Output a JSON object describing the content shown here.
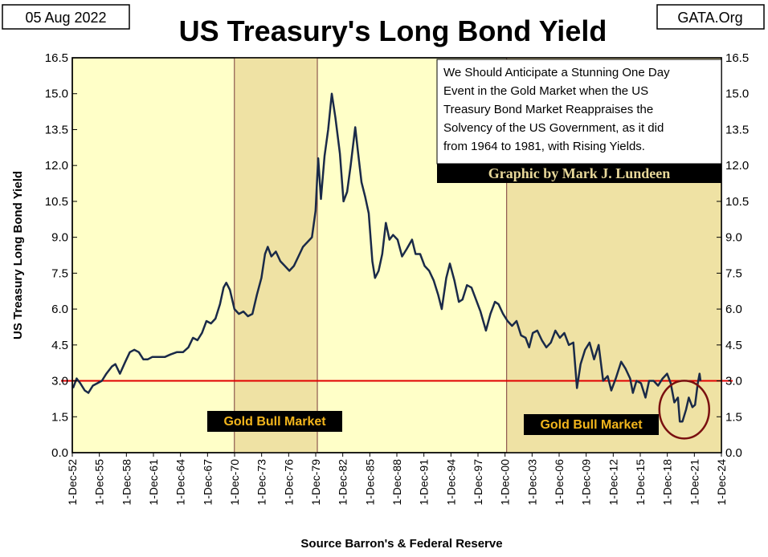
{
  "header": {
    "date": "05 Aug 2022",
    "title": "US Treasury's Long Bond Yield",
    "site": "GATA.Org"
  },
  "annotation": {
    "lines": [
      "We Should Anticipate a Stunning One Day",
      "Event in the Gold Market when the US",
      "Treasury Bond Market Reappraises the",
      "Solvency of the US Government, as it did",
      "from 1964 to 1981, with Rising Yields."
    ],
    "credit": "Graphic by Mark J. Lundeen"
  },
  "bull_labels": [
    "Gold Bull Market",
    "Gold Bull Market"
  ],
  "colors": {
    "plot_bg": "#ffffc8",
    "shaded_bg": "#efe2a4",
    "line": "#1a2a48",
    "reference_line": "#e00000",
    "circle": "#7a1010",
    "label_bg": "#000000",
    "label_text": "#f2b51c"
  },
  "chart_data": {
    "type": "line",
    "title": "US Treasury's Long Bond Yield",
    "ylabel": "US Treasury  Long Bond Yield",
    "xlabel": "Source Barron's & Federal Reserve",
    "x_range": [
      1952.92,
      2024.92
    ],
    "ylim": [
      0,
      16.5
    ],
    "y_ticks": [
      "0.0",
      "1.5",
      "3.0",
      "4.5",
      "6.0",
      "7.5",
      "9.0",
      "10.5",
      "12.0",
      "13.5",
      "15.0",
      "16.5"
    ],
    "x_ticks": [
      "1-Dec-52",
      "1-Dec-55",
      "1-Dec-58",
      "1-Dec-61",
      "1-Dec-64",
      "1-Dec-67",
      "1-Dec-70",
      "1-Dec-73",
      "1-Dec-76",
      "1-Dec-79",
      "1-Dec-82",
      "1-Dec-85",
      "1-Dec-88",
      "1-Dec-91",
      "1-Dec-94",
      "1-Dec-97",
      "1-Dec-00",
      "1-Dec-03",
      "1-Dec-06",
      "1-Dec-09",
      "1-Dec-12",
      "1-Dec-15",
      "1-Dec-18",
      "1-Dec-21",
      "1-Dec-24"
    ],
    "reference_line": 3.0,
    "shaded_periods": [
      [
        1970.9,
        1980.1
      ],
      [
        2001.1,
        2024.92
      ]
    ],
    "highlight_region": {
      "center": [
        2020.8,
        1.8
      ],
      "note": "circled 2020-2022 low"
    },
    "grid": false,
    "legend": "none",
    "series": [
      {
        "points": [
          [
            1953.0,
            2.7
          ],
          [
            1953.4,
            3.1
          ],
          [
            1953.8,
            2.9
          ],
          [
            1954.3,
            2.6
          ],
          [
            1954.7,
            2.5
          ],
          [
            1955.2,
            2.8
          ],
          [
            1955.7,
            2.9
          ],
          [
            1956.2,
            3.0
          ],
          [
            1956.7,
            3.3
          ],
          [
            1957.3,
            3.6
          ],
          [
            1957.7,
            3.7
          ],
          [
            1958.2,
            3.3
          ],
          [
            1958.8,
            3.8
          ],
          [
            1959.3,
            4.2
          ],
          [
            1959.8,
            4.3
          ],
          [
            1960.3,
            4.2
          ],
          [
            1960.8,
            3.9
          ],
          [
            1961.3,
            3.9
          ],
          [
            1961.8,
            4.0
          ],
          [
            1962.5,
            4.0
          ],
          [
            1963.2,
            4.0
          ],
          [
            1963.8,
            4.1
          ],
          [
            1964.5,
            4.2
          ],
          [
            1965.2,
            4.2
          ],
          [
            1965.8,
            4.4
          ],
          [
            1966.3,
            4.8
          ],
          [
            1966.8,
            4.7
          ],
          [
            1967.3,
            5.0
          ],
          [
            1967.8,
            5.5
          ],
          [
            1968.3,
            5.4
          ],
          [
            1968.8,
            5.6
          ],
          [
            1969.3,
            6.2
          ],
          [
            1969.7,
            6.9
          ],
          [
            1970.0,
            7.1
          ],
          [
            1970.4,
            6.8
          ],
          [
            1970.9,
            6.0
          ],
          [
            1971.4,
            5.8
          ],
          [
            1971.9,
            5.9
          ],
          [
            1972.4,
            5.7
          ],
          [
            1972.9,
            5.8
          ],
          [
            1973.4,
            6.6
          ],
          [
            1973.9,
            7.3
          ],
          [
            1974.3,
            8.3
          ],
          [
            1974.6,
            8.6
          ],
          [
            1975.0,
            8.2
          ],
          [
            1975.5,
            8.4
          ],
          [
            1976.0,
            8.0
          ],
          [
            1976.5,
            7.8
          ],
          [
            1977.0,
            7.6
          ],
          [
            1977.5,
            7.8
          ],
          [
            1978.0,
            8.2
          ],
          [
            1978.5,
            8.6
          ],
          [
            1979.0,
            8.8
          ],
          [
            1979.5,
            9.0
          ],
          [
            1979.9,
            10.1
          ],
          [
            1980.2,
            12.3
          ],
          [
            1980.5,
            10.6
          ],
          [
            1980.9,
            12.4
          ],
          [
            1981.3,
            13.5
          ],
          [
            1981.7,
            15.0
          ],
          [
            1982.1,
            14.0
          ],
          [
            1982.6,
            12.5
          ],
          [
            1983.0,
            10.5
          ],
          [
            1983.4,
            10.9
          ],
          [
            1983.8,
            12.0
          ],
          [
            1984.3,
            13.6
          ],
          [
            1984.6,
            12.6
          ],
          [
            1985.0,
            11.3
          ],
          [
            1985.4,
            10.7
          ],
          [
            1985.8,
            10.0
          ],
          [
            1986.2,
            8.0
          ],
          [
            1986.5,
            7.3
          ],
          [
            1986.9,
            7.6
          ],
          [
            1987.3,
            8.3
          ],
          [
            1987.7,
            9.6
          ],
          [
            1988.1,
            8.9
          ],
          [
            1988.5,
            9.1
          ],
          [
            1989.0,
            8.9
          ],
          [
            1989.5,
            8.2
          ],
          [
            1990.0,
            8.5
          ],
          [
            1990.6,
            8.9
          ],
          [
            1991.0,
            8.3
          ],
          [
            1991.5,
            8.3
          ],
          [
            1992.0,
            7.8
          ],
          [
            1992.5,
            7.6
          ],
          [
            1993.0,
            7.2
          ],
          [
            1993.5,
            6.6
          ],
          [
            1993.9,
            6.0
          ],
          [
            1994.4,
            7.3
          ],
          [
            1994.8,
            7.9
          ],
          [
            1995.3,
            7.2
          ],
          [
            1995.8,
            6.3
          ],
          [
            1996.2,
            6.4
          ],
          [
            1996.7,
            7.0
          ],
          [
            1997.2,
            6.9
          ],
          [
            1997.7,
            6.4
          ],
          [
            1998.2,
            5.9
          ],
          [
            1998.8,
            5.1
          ],
          [
            1999.3,
            5.8
          ],
          [
            1999.8,
            6.3
          ],
          [
            2000.2,
            6.2
          ],
          [
            2000.7,
            5.8
          ],
          [
            2001.2,
            5.5
          ],
          [
            2001.7,
            5.3
          ],
          [
            2002.2,
            5.5
          ],
          [
            2002.7,
            4.9
          ],
          [
            2003.2,
            4.8
          ],
          [
            2003.6,
            4.4
          ],
          [
            2004.0,
            5.0
          ],
          [
            2004.5,
            5.1
          ],
          [
            2005.0,
            4.7
          ],
          [
            2005.5,
            4.4
          ],
          [
            2006.0,
            4.6
          ],
          [
            2006.5,
            5.1
          ],
          [
            2007.0,
            4.8
          ],
          [
            2007.5,
            5.0
          ],
          [
            2008.0,
            4.5
          ],
          [
            2008.5,
            4.6
          ],
          [
            2008.9,
            2.7
          ],
          [
            2009.3,
            3.7
          ],
          [
            2009.8,
            4.3
          ],
          [
            2010.3,
            4.6
          ],
          [
            2010.8,
            3.9
          ],
          [
            2011.3,
            4.5
          ],
          [
            2011.8,
            3.0
          ],
          [
            2012.3,
            3.2
          ],
          [
            2012.7,
            2.6
          ],
          [
            2013.2,
            3.1
          ],
          [
            2013.8,
            3.8
          ],
          [
            2014.3,
            3.5
          ],
          [
            2014.8,
            3.1
          ],
          [
            2015.1,
            2.5
          ],
          [
            2015.5,
            3.0
          ],
          [
            2016.0,
            2.9
          ],
          [
            2016.5,
            2.3
          ],
          [
            2016.9,
            3.0
          ],
          [
            2017.4,
            3.0
          ],
          [
            2017.9,
            2.8
          ],
          [
            2018.4,
            3.1
          ],
          [
            2018.9,
            3.3
          ],
          [
            2019.3,
            2.9
          ],
          [
            2019.7,
            2.1
          ],
          [
            2020.1,
            2.3
          ],
          [
            2020.3,
            1.3
          ],
          [
            2020.6,
            1.3
          ],
          [
            2021.0,
            1.8
          ],
          [
            2021.3,
            2.3
          ],
          [
            2021.7,
            1.9
          ],
          [
            2022.0,
            2.0
          ],
          [
            2022.3,
            2.9
          ],
          [
            2022.5,
            3.3
          ],
          [
            2022.6,
            3.0
          ]
        ]
      }
    ]
  }
}
